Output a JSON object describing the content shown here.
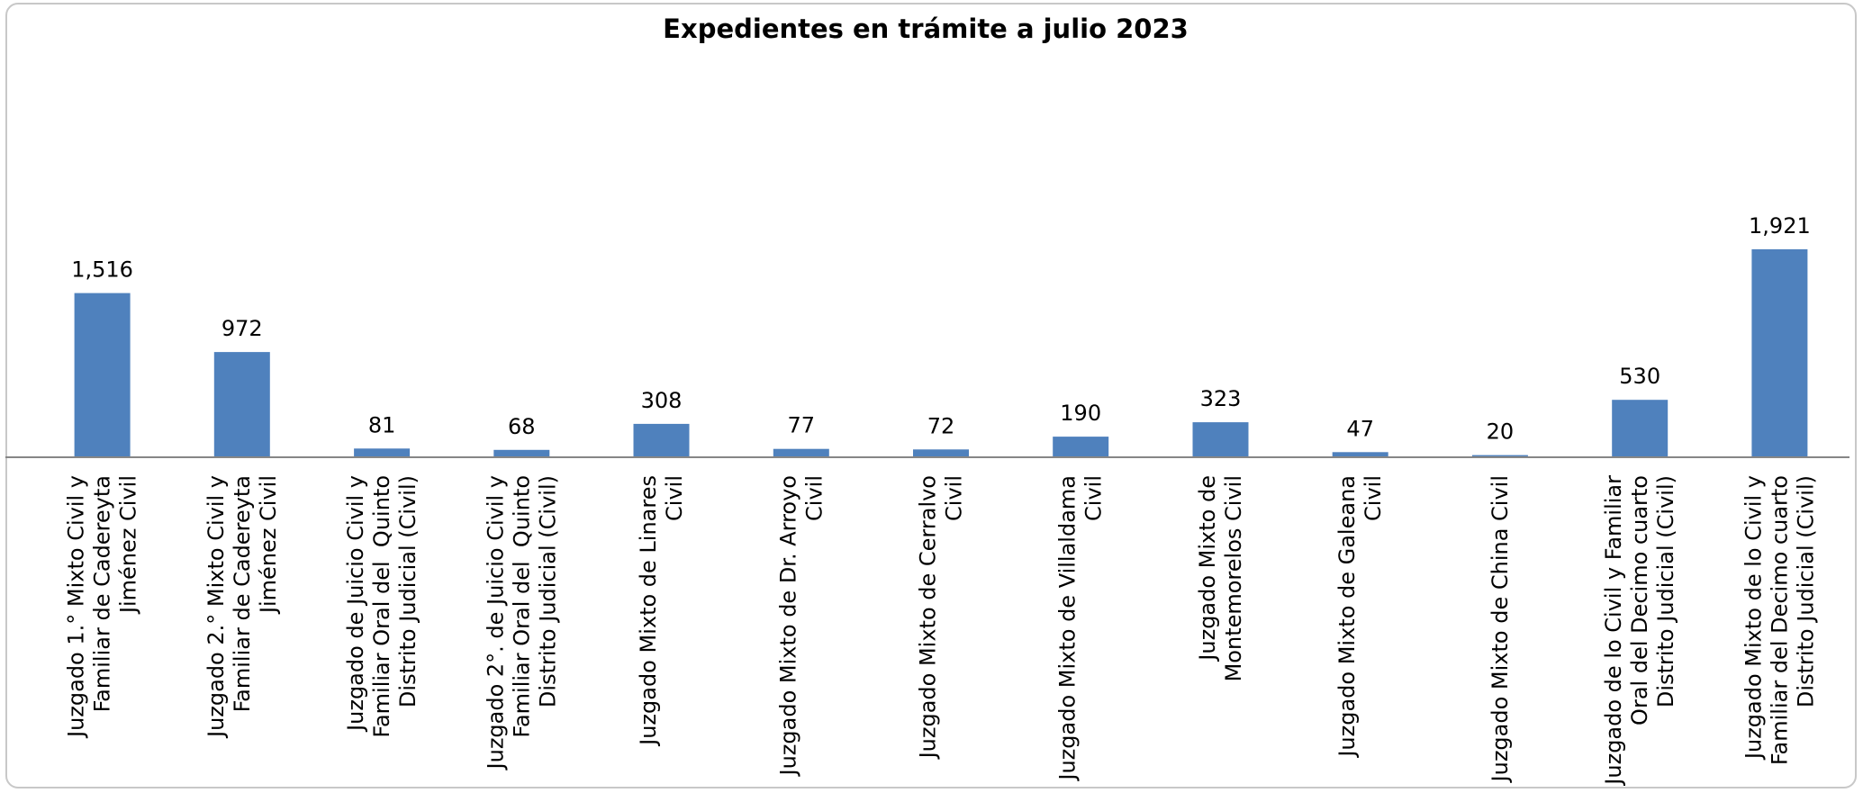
{
  "chart_data": {
    "type": "bar",
    "title": "Expedientes en trámite a julio 2023",
    "categories": [
      [
        "Juzgado 1.° Mixto Civil y",
        "Familiar de Cadereyta",
        "Jiménez Civil"
      ],
      [
        "Juzgado 2.° Mixto Civil y",
        "Familiar de Cadereyta",
        "Jiménez Civil"
      ],
      [
        "Juzgado de Juicio Civil y",
        "Familiar Oral del  Quinto",
        "Distrito Judicial (Civil)"
      ],
      [
        "Juzgado 2°. de Juicio Civil y",
        "Familiar Oral del  Quinto",
        "Distrito Judicial (Civil)"
      ],
      [
        "Juzgado Mixto de Linares",
        "Civil"
      ],
      [
        "Juzgado Mixto de Dr. Arroyo",
        "Civil"
      ],
      [
        "Juzgado Mixto de Cerralvo",
        "Civil"
      ],
      [
        "Juzgado Mixto de Villaldama",
        "Civil"
      ],
      [
        "Juzgado Mixto de",
        "Montemorelos Civil"
      ],
      [
        "Juzgado Mixto de Galeana",
        "Civil"
      ],
      [
        "Juzgado Mixto de China Civil"
      ],
      [
        "Juzgado de lo Civil y Familiar",
        "Oral del Decimo cuarto",
        "Distrito Judicial (Civil)"
      ],
      [
        "Juzgado Mixto de lo Civil y",
        "Familiar del Decimo cuarto",
        "Distrito Judicial (Civil)"
      ]
    ],
    "values": [
      1516,
      972,
      81,
      68,
      308,
      77,
      72,
      190,
      323,
      47,
      20,
      530,
      1921
    ],
    "data_labels": [
      "1,516",
      "972",
      "81",
      "68",
      "308",
      "77",
      "72",
      "190",
      "323",
      "47",
      "20",
      "530",
      "1,921"
    ],
    "bar_color": "#4F81BD",
    "axis_color": "#868686",
    "ylim": [
      0,
      2500
    ],
    "grid": false,
    "legend": "none"
  }
}
